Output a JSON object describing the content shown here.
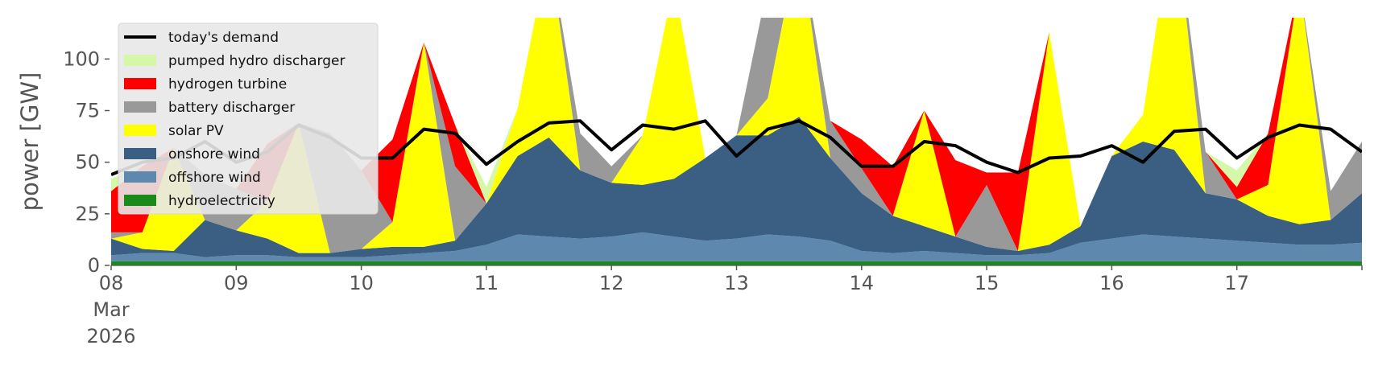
{
  "chart_data": {
    "type": "area",
    "ylabel": "power [GW]",
    "ylim": [
      0,
      120
    ],
    "yticks": [
      0,
      25,
      50,
      75,
      100
    ],
    "xlim": [
      "2026-03-08T00:00",
      "2026-03-18T00:00"
    ],
    "xtick_labels": [
      {
        "date": "2026-03-08",
        "lines": [
          "08",
          "Mar",
          "2026"
        ]
      },
      {
        "date": "2026-03-09",
        "lines": [
          "09"
        ]
      },
      {
        "date": "2026-03-10",
        "lines": [
          "10"
        ]
      },
      {
        "date": "2026-03-11",
        "lines": [
          "11"
        ]
      },
      {
        "date": "2026-03-12",
        "lines": [
          "12"
        ]
      },
      {
        "date": "2026-03-13",
        "lines": [
          "13"
        ]
      },
      {
        "date": "2026-03-14",
        "lines": [
          "14"
        ]
      },
      {
        "date": "2026-03-15",
        "lines": [
          "15"
        ]
      },
      {
        "date": "2026-03-16",
        "lines": [
          "16"
        ]
      },
      {
        "date": "2026-03-17",
        "lines": [
          "17"
        ]
      }
    ],
    "grid": false,
    "legend_position": "top-left",
    "x": [
      "2026-03-08T00:00",
      "2026-03-08T06:00",
      "2026-03-08T12:00",
      "2026-03-08T18:00",
      "2026-03-09T00:00",
      "2026-03-09T06:00",
      "2026-03-09T12:00",
      "2026-03-09T18:00",
      "2026-03-10T00:00",
      "2026-03-10T06:00",
      "2026-03-10T12:00",
      "2026-03-10T18:00",
      "2026-03-11T00:00",
      "2026-03-11T06:00",
      "2026-03-11T12:00",
      "2026-03-11T18:00",
      "2026-03-12T00:00",
      "2026-03-12T06:00",
      "2026-03-12T12:00",
      "2026-03-12T18:00",
      "2026-03-13T00:00",
      "2026-03-13T06:00",
      "2026-03-13T12:00",
      "2026-03-13T18:00",
      "2026-03-14T00:00",
      "2026-03-14T06:00",
      "2026-03-14T12:00",
      "2026-03-14T18:00",
      "2026-03-15T00:00",
      "2026-03-15T06:00",
      "2026-03-15T12:00",
      "2026-03-15T18:00",
      "2026-03-16T00:00",
      "2026-03-16T06:00",
      "2026-03-16T12:00",
      "2026-03-16T18:00",
      "2026-03-17T00:00",
      "2026-03-17T06:00",
      "2026-03-17T12:00",
      "2026-03-17T18:00",
      "2026-03-18T00:00"
    ],
    "series": [
      {
        "name": "hydroelectricity",
        "color": "#1a8a1a",
        "values": [
          2,
          2,
          2,
          2,
          2,
          2,
          2,
          2,
          2,
          2,
          2,
          2,
          2,
          2,
          2,
          2,
          2,
          2,
          2,
          2,
          2,
          2,
          2,
          2,
          2,
          2,
          2,
          2,
          2,
          2,
          2,
          2,
          2,
          2,
          2,
          2,
          2,
          2,
          2,
          2,
          2
        ]
      },
      {
        "name": "offshore wind",
        "color": "#5e88ad",
        "values": [
          3,
          4,
          4,
          2,
          3,
          3,
          2,
          2,
          2,
          3,
          4,
          5,
          8,
          13,
          12,
          11,
          12,
          14,
          12,
          10,
          11,
          13,
          12,
          10,
          5,
          4,
          5,
          4,
          3,
          3,
          4,
          9,
          11,
          13,
          12,
          11,
          10,
          9,
          8,
          8,
          9
        ]
      },
      {
        "name": "onshore wind",
        "color": "#3b5f82",
        "values": [
          8,
          2,
          1,
          18,
          12,
          8,
          2,
          2,
          4,
          4,
          3,
          5,
          20,
          38,
          48,
          33,
          26,
          23,
          28,
          40,
          50,
          48,
          58,
          40,
          28,
          18,
          12,
          8,
          4,
          2,
          4,
          8,
          40,
          45,
          42,
          22,
          20,
          13,
          10,
          12,
          24
        ]
      },
      {
        "name": "solar PV",
        "color": "#ffff00",
        "values": [
          0,
          8,
          50,
          0,
          0,
          18,
          63,
          0,
          0,
          12,
          99,
          0,
          0,
          23,
          92,
          0,
          0,
          24,
          95,
          0,
          0,
          18,
          86,
          0,
          0,
          0,
          56,
          0,
          0,
          0,
          103,
          0,
          0,
          13,
          117,
          0,
          0,
          15,
          117,
          0,
          0
        ]
      },
      {
        "name": "battery discharger",
        "color": "#999999",
        "values": [
          3,
          0,
          0,
          22,
          20,
          0,
          0,
          58,
          38,
          0,
          0,
          36,
          0,
          0,
          0,
          18,
          8,
          0,
          0,
          0,
          0,
          55,
          0,
          18,
          12,
          0,
          0,
          0,
          30,
          0,
          0,
          0,
          0,
          0,
          0,
          20,
          0,
          0,
          0,
          14,
          25
        ]
      },
      {
        "name": "hydrogen turbine",
        "color": "#ff0000",
        "values": [
          20,
          32,
          0,
          0,
          0,
          28,
          0,
          0,
          0,
          40,
          0,
          20,
          0,
          0,
          0,
          0,
          0,
          0,
          0,
          0,
          0,
          0,
          0,
          0,
          14,
          24,
          0,
          37,
          6,
          38,
          0,
          0,
          0,
          0,
          0,
          0,
          6,
          25,
          0,
          0,
          0
        ]
      },
      {
        "name": "pumped hydro discharger",
        "color": "#d4f7a8",
        "values": [
          6,
          0,
          0,
          0,
          0,
          0,
          0,
          0,
          0,
          0,
          0,
          0,
          8,
          0,
          0,
          0,
          0,
          0,
          0,
          0,
          0,
          0,
          0,
          0,
          0,
          0,
          0,
          0,
          0,
          0,
          0,
          0,
          0,
          0,
          0,
          0,
          8,
          0,
          0,
          0,
          0
        ]
      }
    ],
    "demand": {
      "name": "today's demand",
      "color": "#000000",
      "values": [
        44,
        50,
        52,
        60,
        50,
        55,
        68,
        62,
        52,
        52,
        66,
        64,
        49,
        60,
        69,
        70,
        56,
        68,
        66,
        70,
        53,
        66,
        70,
        62,
        48,
        48,
        60,
        58,
        50,
        45,
        52,
        53,
        58,
        50,
        65,
        66,
        52,
        62,
        68,
        66,
        55
      ]
    },
    "legend": [
      {
        "label": "today's demand",
        "kind": "line",
        "color": "#000000"
      },
      {
        "label": "pumped hydro discharger",
        "kind": "patch",
        "color": "#d4f7a8"
      },
      {
        "label": "hydrogen turbine",
        "kind": "patch",
        "color": "#ff0000"
      },
      {
        "label": "battery discharger",
        "kind": "patch",
        "color": "#999999"
      },
      {
        "label": "solar PV",
        "kind": "patch",
        "color": "#ffff00"
      },
      {
        "label": "onshore wind",
        "kind": "patch",
        "color": "#3b5f82"
      },
      {
        "label": "offshore wind",
        "kind": "patch",
        "color": "#5e88ad"
      },
      {
        "label": "hydroelectricity",
        "kind": "patch",
        "color": "#1a8a1a"
      }
    ]
  }
}
